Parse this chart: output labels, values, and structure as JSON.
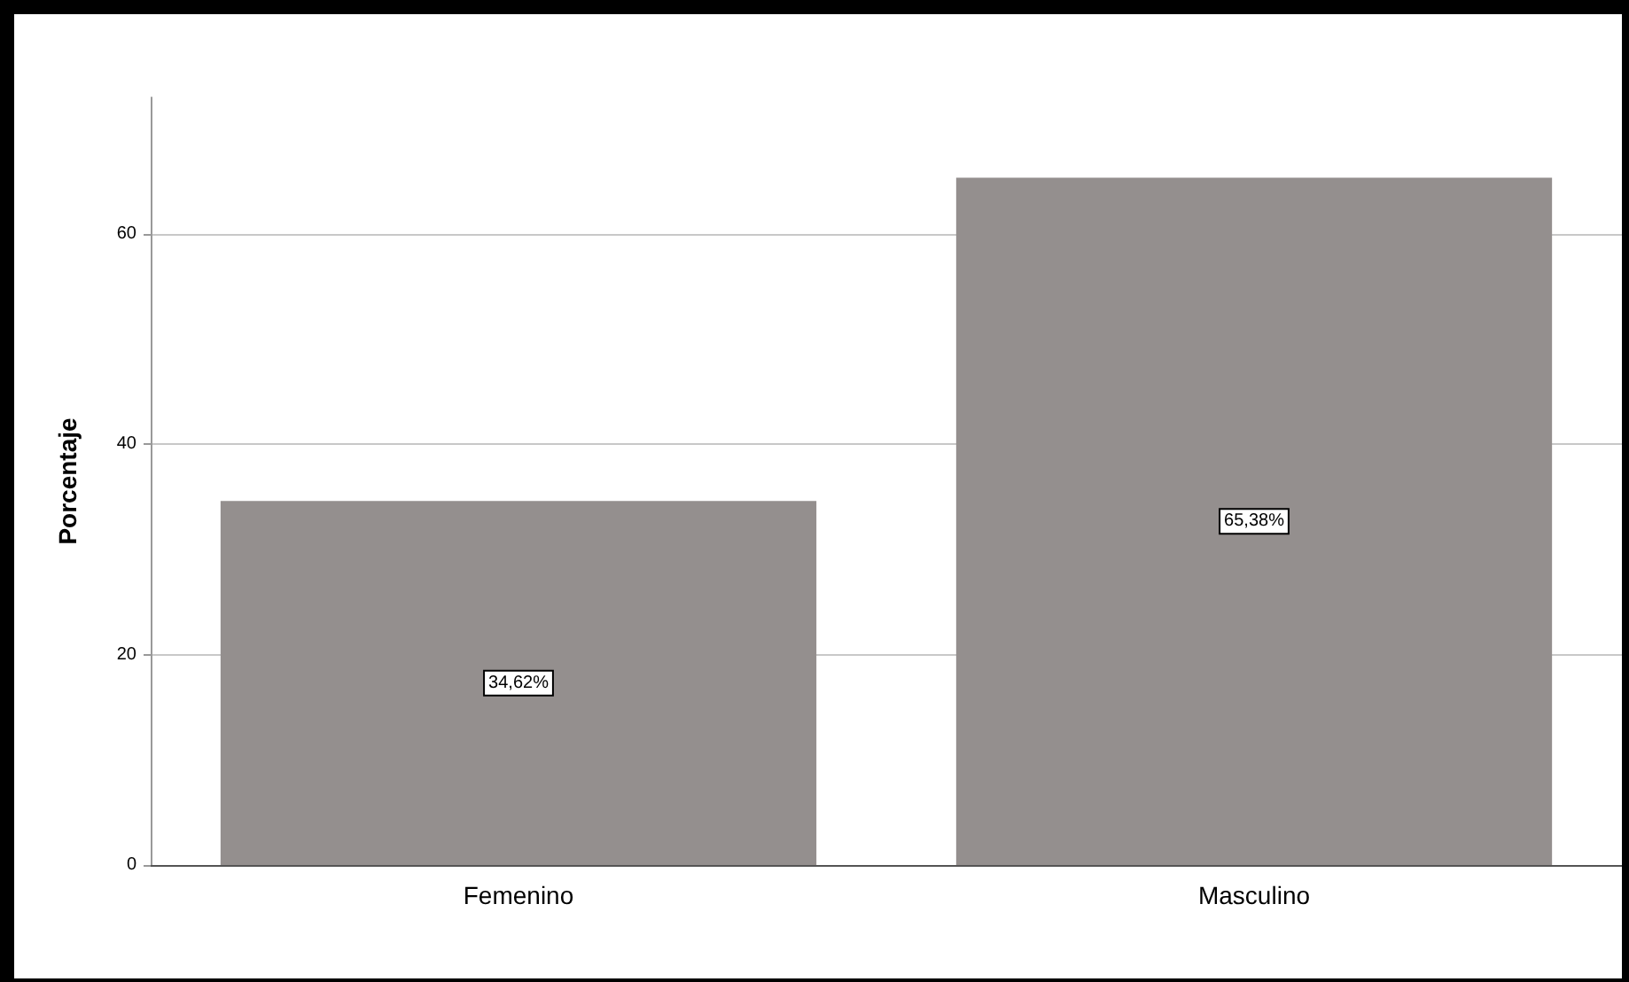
{
  "chart_data": {
    "type": "bar",
    "ylabel": "Porcentaje",
    "categories": [
      "Femenino",
      "Masculino"
    ],
    "values": [
      34.62,
      65.38
    ],
    "color": "#948f8e",
    "value_labels": [
      "34,62%",
      "65,38%"
    ],
    "ylim": [
      0,
      73
    ],
    "yticks": [
      0,
      20,
      40,
      60
    ],
    "grid": "y"
  }
}
